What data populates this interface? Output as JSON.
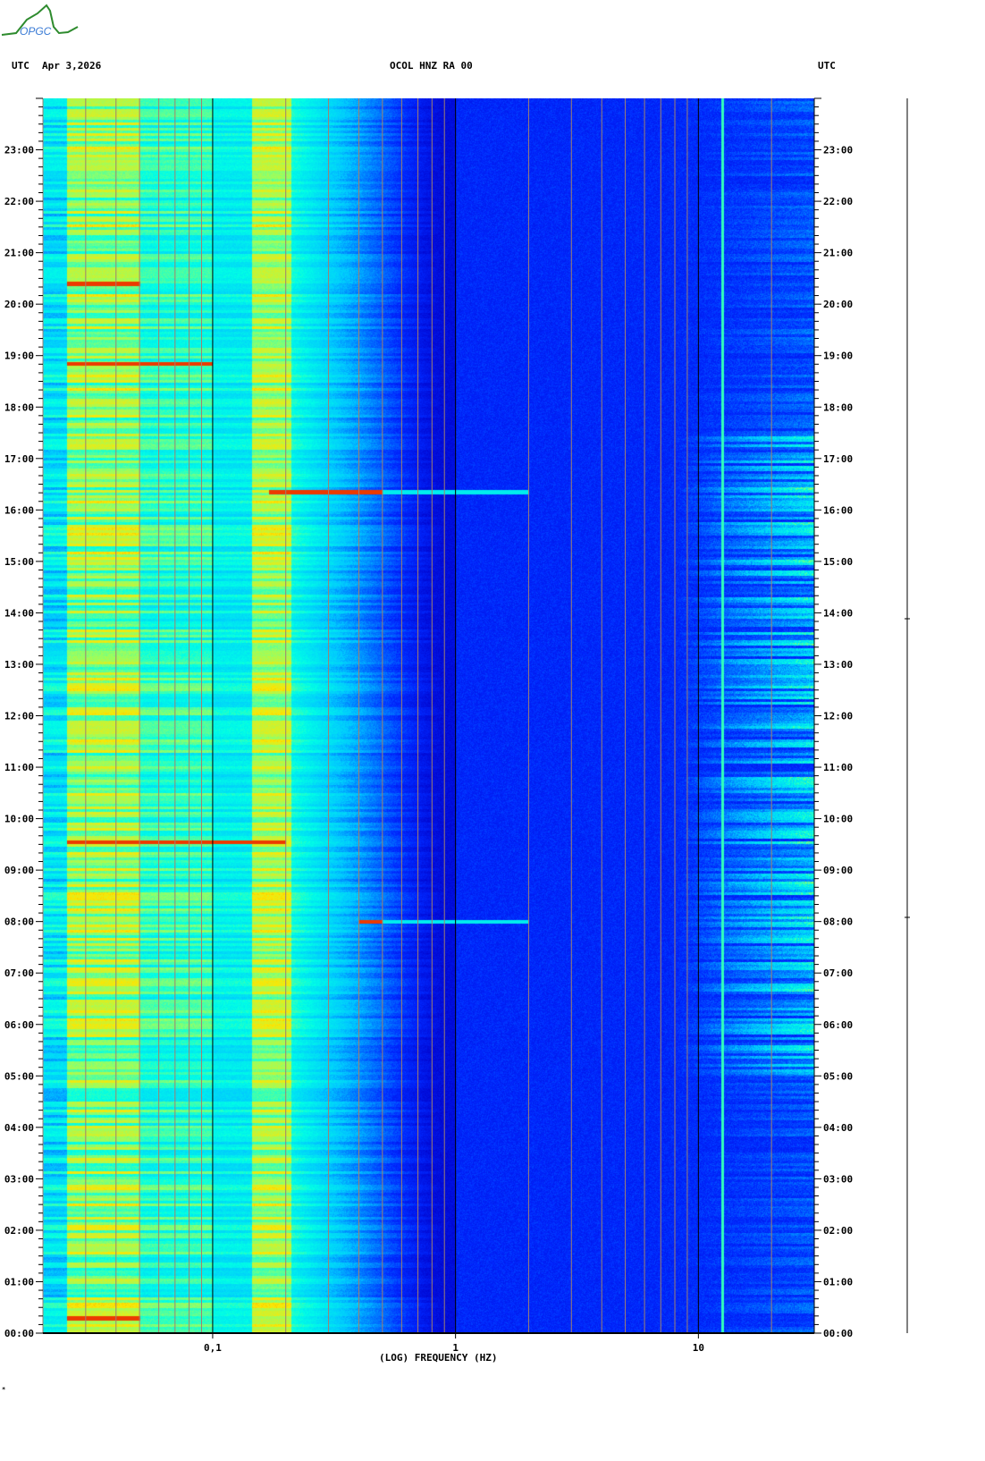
{
  "logo_text": "OPGC",
  "header": {
    "left_tz": "UTC",
    "date": "Apr 3,2026",
    "station": "OCOL HNZ RA 00",
    "right_tz": "UTC"
  },
  "chart_data": {
    "type": "heatmap",
    "title": "OCOL HNZ RA 00",
    "xlabel": "(LOG) FREQUENCY (HZ)",
    "ylabel": "UTC",
    "x_scale": "log",
    "xlim": [
      0.02,
      30
    ],
    "ylim_hours": [
      0,
      24
    ],
    "x_tick_labels": [
      {
        "value": 0.1,
        "label": "0,1"
      },
      {
        "value": 1,
        "label": "1"
      },
      {
        "value": 10,
        "label": "10"
      }
    ],
    "y_tick_labels": [
      "00:00",
      "01:00",
      "02:00",
      "03:00",
      "04:00",
      "05:00",
      "06:00",
      "07:00",
      "08:00",
      "09:00",
      "10:00",
      "11:00",
      "12:00",
      "13:00",
      "14:00",
      "15:00",
      "16:00",
      "17:00",
      "18:00",
      "19:00",
      "20:00",
      "21:00",
      "22:00",
      "23:00"
    ],
    "colorscale": [
      "#0000c8",
      "#0028ff",
      "#00c8ff",
      "#00ffe6",
      "#96ff64",
      "#ffe600",
      "#e60000"
    ],
    "persistent_line_hz": 12.5,
    "daytime_high_freq_activity": {
      "hours": [
        5,
        17.5
      ],
      "freq_hz": [
        10,
        30
      ]
    },
    "notable_events": [
      {
        "hour": 20.4,
        "freq_hz": [
          0.025,
          0.05
        ]
      },
      {
        "hour": 18.85,
        "freq_hz": [
          0.025,
          0.1
        ]
      },
      {
        "hour": 16.35,
        "freq_hz": [
          0.17,
          2
        ]
      },
      {
        "hour": 9.55,
        "freq_hz": [
          0.025,
          0.2
        ]
      },
      {
        "hour": 8.0,
        "freq_hz": [
          0.4,
          2
        ]
      },
      {
        "hour": 0.3,
        "freq_hz": [
          0.025,
          0.05
        ]
      }
    ]
  },
  "footer_mark": "*"
}
